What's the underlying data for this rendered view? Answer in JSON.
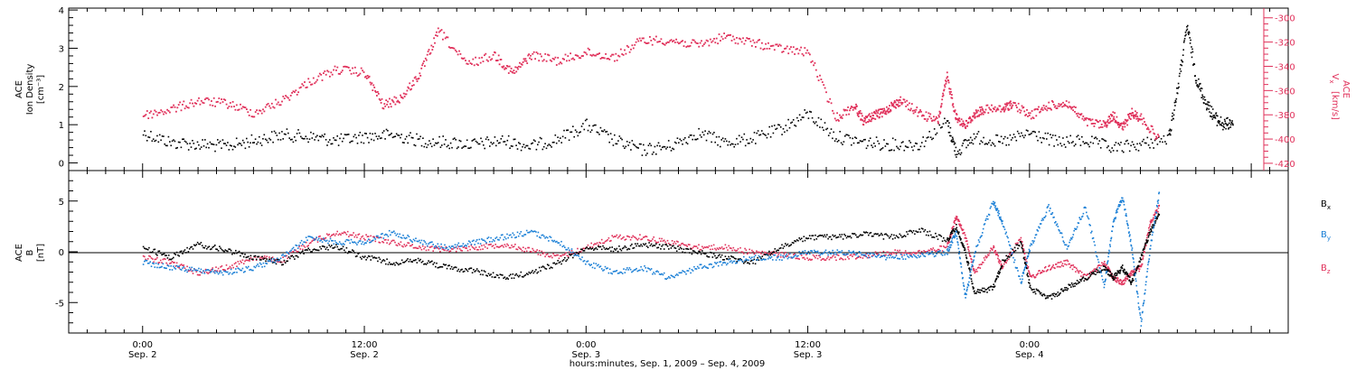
{
  "chart_data": [
    {
      "type": "scatter",
      "panel": "top",
      "ylabel_left": [
        "ACE",
        "Ion Density",
        "[cm⁻³]"
      ],
      "ylabel_right": [
        "ACE",
        "V",
        "x",
        "[km/s]"
      ],
      "left_ticks": [
        "0",
        "1",
        "2",
        "3",
        "4"
      ],
      "left_ylim": [
        -0.2,
        4.05
      ],
      "right_ticks": [
        "-300",
        "-320",
        "-340",
        "-360",
        "-380",
        "-400",
        "-420"
      ],
      "right_ylim": [
        -426,
        -292
      ],
      "series": [
        {
          "name": "Ion Density",
          "color": "#000000",
          "axis": "left",
          "points": [
            [
              0,
              0.8
            ],
            [
              3,
              0.55
            ],
            [
              6,
              0.5
            ],
            [
              9,
              0.45
            ],
            [
              12,
              0.6
            ],
            [
              15,
              0.75
            ],
            [
              18,
              0.7
            ],
            [
              21,
              0.6
            ],
            [
              24,
              0.7
            ],
            [
              27,
              0.75
            ],
            [
              30,
              0.6
            ],
            [
              33,
              0.55
            ],
            [
              36,
              0.5
            ],
            [
              39,
              0.6
            ],
            [
              42,
              0.45
            ],
            [
              45,
              0.65
            ],
            [
              48,
              1.0
            ],
            [
              51,
              0.6
            ],
            [
              54,
              0.35
            ],
            [
              57,
              0.45
            ],
            [
              60,
              0.8
            ],
            [
              63,
              0.55
            ],
            [
              66,
              0.65
            ],
            [
              69,
              0.9
            ],
            [
              72,
              1.3
            ],
            [
              75,
              0.7
            ],
            [
              78,
              0.55
            ],
            [
              81,
              0.5
            ],
            [
              84,
              0.5
            ],
            [
              87,
              1.1
            ],
            [
              88,
              0.3
            ],
            [
              90,
              0.7
            ],
            [
              93,
              0.55
            ],
            [
              96,
              0.8
            ],
            [
              99,
              0.55
            ],
            [
              102,
              0.6
            ],
            [
              105,
              0.4
            ],
            [
              108,
              0.5
            ],
            [
              111,
              0.65
            ],
            [
              112,
              2.0
            ],
            [
              113,
              3.6
            ],
            [
              114,
              2.2
            ],
            [
              115,
              1.6
            ],
            [
              116,
              1.2
            ],
            [
              117,
              1.0
            ],
            [
              118,
              1.1
            ]
          ]
        },
        {
          "name": "Vx",
          "color": "#e0305a",
          "axis": "right",
          "points": [
            [
              0,
              -380
            ],
            [
              3,
              -375
            ],
            [
              6,
              -368
            ],
            [
              9,
              -370
            ],
            [
              12,
              -378
            ],
            [
              15,
              -368
            ],
            [
              18,
              -352
            ],
            [
              21,
              -342
            ],
            [
              24,
              -345
            ],
            [
              26,
              -372
            ],
            [
              28,
              -365
            ],
            [
              30,
              -345
            ],
            [
              32,
              -310
            ],
            [
              35,
              -338
            ],
            [
              38,
              -330
            ],
            [
              40,
              -345
            ],
            [
              42,
              -330
            ],
            [
              45,
              -335
            ],
            [
              48,
              -328
            ],
            [
              51,
              -332
            ],
            [
              54,
              -318
            ],
            [
              57,
              -318
            ],
            [
              60,
              -322
            ],
            [
              63,
              -315
            ],
            [
              66,
              -320
            ],
            [
              69,
              -325
            ],
            [
              72,
              -328
            ],
            [
              75,
              -382
            ],
            [
              77,
              -372
            ],
            [
              78,
              -385
            ],
            [
              79,
              -380
            ],
            [
              80,
              -378
            ],
            [
              81,
              -372
            ],
            [
              82,
              -368
            ],
            [
              84,
              -378
            ],
            [
              86,
              -385
            ],
            [
              87,
              -348
            ],
            [
              88,
              -382
            ],
            [
              89,
              -388
            ],
            [
              90,
              -379
            ],
            [
              91,
              -375
            ],
            [
              93,
              -375
            ],
            [
              94,
              -370
            ],
            [
              96,
              -380
            ],
            [
              98,
              -372
            ],
            [
              100,
              -370
            ],
            [
              102,
              -385
            ],
            [
              104,
              -388
            ],
            [
              105,
              -380
            ],
            [
              106,
              -390
            ],
            [
              107,
              -378
            ],
            [
              108,
              -382
            ],
            [
              110,
              -400
            ]
          ]
        }
      ]
    },
    {
      "type": "scatter",
      "panel": "bottom",
      "ylabel_left": [
        "ACE",
        "B",
        "[nT]"
      ],
      "left_ticks": [
        "-5",
        "0",
        "5"
      ],
      "ylim": [
        -8,
        8
      ],
      "series": [
        {
          "name": "Bx",
          "label_base": "B",
          "label_sub": "x",
          "color": "#000000",
          "points": [
            [
              0,
              0.5
            ],
            [
              3,
              -0.5
            ],
            [
              6,
              0.8
            ],
            [
              9,
              0.2
            ],
            [
              12,
              -0.5
            ],
            [
              15,
              -1.0
            ],
            [
              18,
              0.3
            ],
            [
              21,
              0.6
            ],
            [
              24,
              -0.5
            ],
            [
              27,
              -1.0
            ],
            [
              30,
              -0.8
            ],
            [
              33,
              -1.5
            ],
            [
              36,
              -1.8
            ],
            [
              39,
              -2.5
            ],
            [
              42,
              -2.0
            ],
            [
              45,
              -1.0
            ],
            [
              48,
              0.5
            ],
            [
              51,
              0.3
            ],
            [
              54,
              0.8
            ],
            [
              57,
              0.5
            ],
            [
              60,
              0.0
            ],
            [
              63,
              -0.5
            ],
            [
              66,
              -1.0
            ],
            [
              69,
              0.5
            ],
            [
              72,
              1.5
            ],
            [
              75,
              1.5
            ],
            [
              78,
              1.8
            ],
            [
              81,
              1.5
            ],
            [
              84,
              2.2
            ],
            [
              87,
              1.2
            ],
            [
              88,
              2.5
            ],
            [
              89,
              0.0
            ],
            [
              90,
              -4.0
            ],
            [
              92,
              -3.5
            ],
            [
              93,
              -1.0
            ],
            [
              95,
              1.0
            ],
            [
              96,
              -3.5
            ],
            [
              98,
              -4.5
            ],
            [
              100,
              -3.5
            ],
            [
              102,
              -2.5
            ],
            [
              104,
              -1.5
            ],
            [
              105,
              -2.5
            ],
            [
              106,
              -1.5
            ],
            [
              107,
              -3.0
            ],
            [
              108,
              -0.5
            ],
            [
              109,
              2.0
            ],
            [
              110,
              4.0
            ]
          ]
        },
        {
          "name": "By",
          "label_base": "B",
          "label_sub": "y",
          "color": "#1a7fd6",
          "points": [
            [
              0,
              -1.0
            ],
            [
              3,
              -1.5
            ],
            [
              6,
              -1.8
            ],
            [
              9,
              -2.0
            ],
            [
              12,
              -1.5
            ],
            [
              15,
              -0.5
            ],
            [
              18,
              1.5
            ],
            [
              21,
              1.0
            ],
            [
              24,
              1.0
            ],
            [
              27,
              2.0
            ],
            [
              30,
              1.0
            ],
            [
              33,
              0.5
            ],
            [
              36,
              1.0
            ],
            [
              39,
              1.5
            ],
            [
              42,
              2.0
            ],
            [
              45,
              1.0
            ],
            [
              48,
              -1.0
            ],
            [
              51,
              -2.0
            ],
            [
              54,
              -1.5
            ],
            [
              57,
              -2.5
            ],
            [
              60,
              -1.5
            ],
            [
              63,
              -1.0
            ],
            [
              66,
              -0.5
            ],
            [
              69,
              -0.5
            ],
            [
              72,
              0.0
            ],
            [
              75,
              0.0
            ],
            [
              78,
              -0.2
            ],
            [
              81,
              -0.5
            ],
            [
              84,
              -0.3
            ],
            [
              87,
              0.0
            ],
            [
              88,
              2.0
            ],
            [
              89,
              -4.5
            ],
            [
              90,
              0.0
            ],
            [
              92,
              5.0
            ],
            [
              93,
              3.0
            ],
            [
              95,
              -3.0
            ],
            [
              96,
              0.5
            ],
            [
              98,
              4.5
            ],
            [
              100,
              0.5
            ],
            [
              102,
              4.5
            ],
            [
              104,
              -3.5
            ],
            [
              105,
              3.0
            ],
            [
              106,
              5.5
            ],
            [
              107,
              0.5
            ],
            [
              108,
              -7.0
            ],
            [
              109,
              0.5
            ],
            [
              110,
              6.0
            ]
          ]
        },
        {
          "name": "Bz",
          "label_base": "B",
          "label_sub": "z",
          "color": "#e0305a",
          "points": [
            [
              0,
              -0.5
            ],
            [
              3,
              -1.0
            ],
            [
              6,
              -2.0
            ],
            [
              9,
              -1.5
            ],
            [
              12,
              -0.5
            ],
            [
              15,
              -0.8
            ],
            [
              18,
              1.0
            ],
            [
              21,
              2.0
            ],
            [
              24,
              1.5
            ],
            [
              27,
              1.0
            ],
            [
              30,
              0.5
            ],
            [
              33,
              0.3
            ],
            [
              36,
              0.5
            ],
            [
              39,
              0.8
            ],
            [
              42,
              0.2
            ],
            [
              45,
              -0.5
            ],
            [
              48,
              0.5
            ],
            [
              51,
              1.5
            ],
            [
              54,
              1.5
            ],
            [
              57,
              1.0
            ],
            [
              60,
              0.5
            ],
            [
              63,
              0.5
            ],
            [
              66,
              0.0
            ],
            [
              69,
              -0.2
            ],
            [
              72,
              -0.5
            ],
            [
              75,
              -0.5
            ],
            [
              78,
              -0.3
            ],
            [
              81,
              0.0
            ],
            [
              84,
              0.0
            ],
            [
              87,
              0.5
            ],
            [
              88,
              3.5
            ],
            [
              89,
              1.5
            ],
            [
              90,
              -2.0
            ],
            [
              92,
              0.5
            ],
            [
              93,
              -1.5
            ],
            [
              95,
              1.5
            ],
            [
              96,
              -2.5
            ],
            [
              98,
              -1.5
            ],
            [
              100,
              -1.0
            ],
            [
              102,
              -2.5
            ],
            [
              104,
              -1.0
            ],
            [
              105,
              -2.5
            ],
            [
              106,
              -3.0
            ],
            [
              107,
              -2.0
            ],
            [
              108,
              -1.5
            ],
            [
              109,
              3.0
            ],
            [
              110,
              4.5
            ]
          ]
        }
      ]
    }
  ],
  "time_axis": {
    "range_hours": [
      -8,
      124
    ],
    "ticks": [
      {
        "hours": 0,
        "time": "0:00",
        "date": "Sep. 2"
      },
      {
        "hours": 24,
        "time": "12:00",
        "date": "Sep. 2"
      },
      {
        "hours": 48,
        "time": "0:00",
        "date": "Sep. 3"
      },
      {
        "hours": 72,
        "time": "12:00",
        "date": "Sep. 3"
      },
      {
        "hours": 96,
        "time": "0:00",
        "date": "Sep. 4"
      }
    ],
    "xlabel": "hours:minutes, Sep. 1, 2009 – Sep. 4, 2009"
  }
}
